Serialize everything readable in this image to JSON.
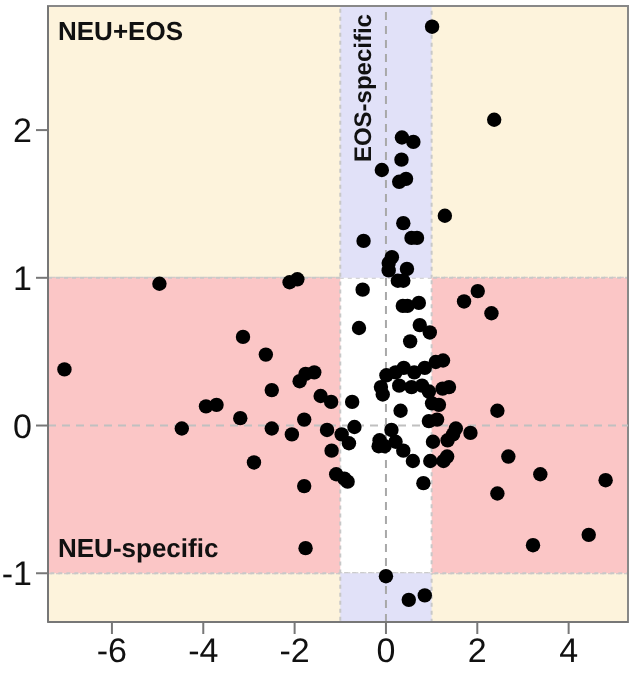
{
  "chart_data": {
    "type": "scatter",
    "color": "#000000",
    "marker": "circle",
    "x": [
      1.01,
      2.37,
      0.35,
      0.6,
      0.34,
      -0.09,
      0.44,
      0.29,
      1.29,
      0.38,
      -0.49,
      0.56,
      0.68,
      0.13,
      0.06,
      0.06,
      0.46,
      0.26,
      0.38,
      -4.96,
      -2.11,
      -1.94,
      -0.51,
      1.71,
      2.01,
      2.31,
      0.37,
      0.47,
      0.72,
      0.74,
      0.96,
      -0.59,
      0.53,
      -3.13,
      -2.63,
      -7.04,
      -1.89,
      -1.76,
      -1.57,
      -2.5,
      -3.94,
      -3.71,
      -3.19,
      -1.43,
      -1.2,
      -0.74,
      -4.47,
      -2.5,
      -2.06,
      -1.79,
      -1.29,
      -1.19,
      -2.89,
      -1.79,
      -1.09,
      -0.91,
      -0.84,
      -0.97,
      -0.81,
      -0.69,
      -1.76,
      -0.11,
      0.01,
      0.21,
      0.39,
      0.62,
      0.85,
      1.09,
      1.25,
      -0.07,
      0.29,
      0.56,
      0.79,
      0.94,
      1.24,
      1.38,
      1.01,
      1.16,
      0.32,
      0.94,
      1.12,
      0.12,
      -0.14,
      -0.03,
      0.21,
      0.38,
      0.59,
      0.82,
      0.97,
      1.03,
      1.26,
      1.34,
      1.35,
      1.47,
      1.53,
      1.85,
      2.44,
      2.68,
      2.44,
      3.38,
      4.81,
      4.44,
      3.22,
      0.0,
      0.5,
      0.85,
      -0.16
    ],
    "values": [
      2.7,
      2.07,
      1.95,
      1.92,
      1.8,
      1.73,
      1.67,
      1.65,
      1.42,
      1.37,
      1.25,
      1.27,
      1.27,
      1.14,
      1.1,
      1.05,
      1.06,
      0.98,
      0.98,
      0.96,
      0.97,
      0.99,
      0.92,
      0.84,
      0.91,
      0.76,
      0.81,
      0.81,
      0.83,
      0.68,
      0.63,
      0.66,
      0.57,
      0.6,
      0.48,
      0.38,
      0.3,
      0.35,
      0.36,
      0.24,
      0.13,
      0.14,
      0.05,
      0.2,
      0.16,
      0.16,
      -0.02,
      -0.02,
      -0.06,
      0.04,
      -0.03,
      -0.17,
      -0.25,
      -0.41,
      -0.33,
      -0.36,
      -0.38,
      -0.06,
      -0.12,
      -0.01,
      -0.83,
      0.26,
      0.34,
      0.36,
      0.39,
      0.36,
      0.39,
      0.43,
      0.44,
      0.21,
      0.27,
      0.26,
      0.27,
      0.23,
      0.25,
      0.26,
      0.15,
      0.14,
      0.1,
      0.03,
      0.04,
      -0.03,
      -0.1,
      -0.14,
      -0.11,
      -0.17,
      -0.24,
      -0.39,
      -0.24,
      -0.11,
      -0.24,
      -0.21,
      -0.1,
      -0.06,
      -0.02,
      -0.05,
      0.1,
      -0.21,
      -0.46,
      -0.33,
      -0.37,
      -0.74,
      -0.81,
      -1.02,
      -1.18,
      -1.15,
      -0.14
    ],
    "xlim": [
      -7.4,
      5.3
    ],
    "ylim": [
      -1.33,
      2.84
    ],
    "xticks": [
      -6,
      -4,
      -2,
      0,
      2,
      4
    ],
    "yticks": [
      -1,
      0,
      1,
      2
    ],
    "bands": [
      {
        "axis": "y",
        "from": 1,
        "to": 2.84,
        "label": "NEU+EOS",
        "color": "#fdf3dc"
      },
      {
        "axis": "y",
        "from": -1.33,
        "to": -1,
        "color": "#fdf3dc"
      },
      {
        "axis": "y",
        "from": -1,
        "to": 1,
        "label": "NEU-specific",
        "color": "#fbc6c6"
      },
      {
        "axis": "x",
        "from": -1,
        "to": 1,
        "label": "EOS-specific",
        "color": "#e1e1f8"
      }
    ],
    "ref_lines": [
      {
        "axis": "x",
        "value": 0,
        "color": "#a8a8a8",
        "line_style": "dashed"
      },
      {
        "axis": "y",
        "value": 0,
        "color": "#c0c0c0",
        "line_style": "dashed"
      }
    ]
  }
}
